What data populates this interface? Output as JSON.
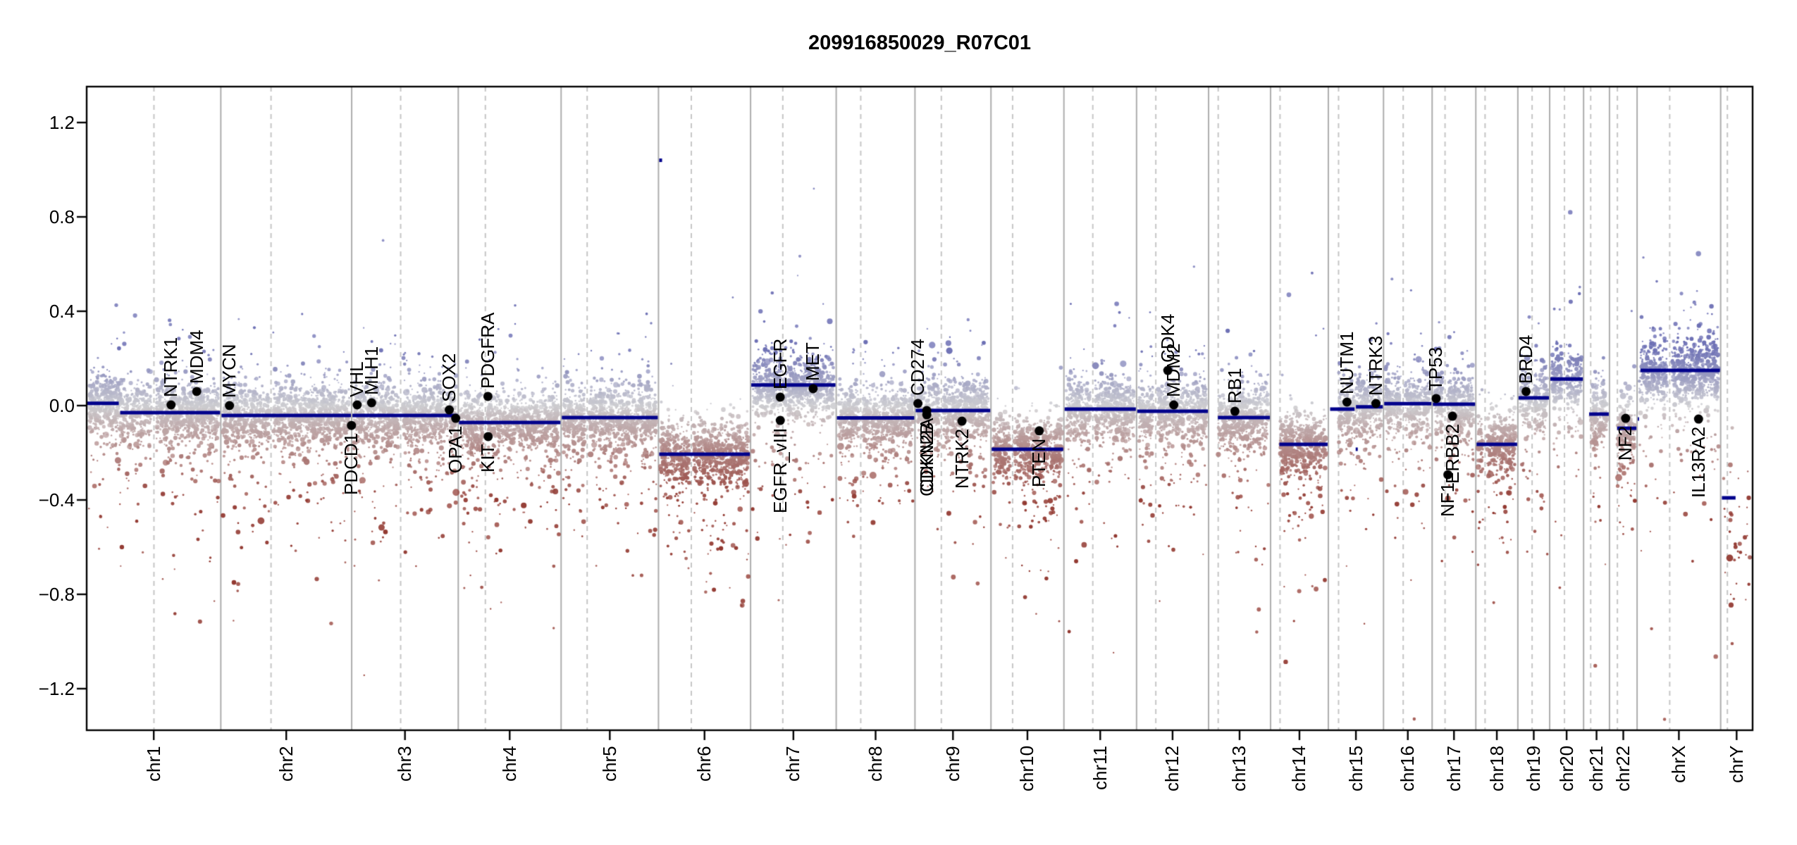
{
  "chart_data": {
    "type": "scatter",
    "subtype": "genome-wide-copy-number-profile",
    "title": "209916850029_R07C01",
    "xlabel": "",
    "ylabel": "",
    "ylim": [
      -1.376,
      1.352
    ],
    "grid": "vertical-chromosome-separators",
    "legend": "none",
    "y_ticks": [
      {
        "value": 1.2,
        "label": "1.2"
      },
      {
        "value": 0.8,
        "label": "0.8"
      },
      {
        "value": 0.4,
        "label": "0.4"
      },
      {
        "value": 0.0,
        "label": "0.0"
      },
      {
        "value": -0.4,
        "label": "−0.4"
      },
      {
        "value": -0.8,
        "label": "−0.8"
      },
      {
        "value": -1.2,
        "label": "−1.2"
      }
    ],
    "points_per_mb": 6.5,
    "point_noise_sd": 0.062,
    "chromosomes": [
      {
        "name": "chr1",
        "length_mb": 249.25,
        "centromere_mb": 125.0,
        "segments": [
          {
            "start": 0,
            "end": 61,
            "value": 0.01
          },
          {
            "start": 61,
            "end": 249.25,
            "value": -0.03
          }
        ]
      },
      {
        "name": "chr2",
        "length_mb": 243.2,
        "centromere_mb": 93.3,
        "segments": [
          {
            "start": 0,
            "end": 243.2,
            "value": -0.042
          }
        ]
      },
      {
        "name": "chr3",
        "length_mb": 198.02,
        "centromere_mb": 91.0,
        "segments": [
          {
            "start": 0,
            "end": 198.02,
            "value": -0.042
          }
        ]
      },
      {
        "name": "chr4",
        "length_mb": 191.15,
        "centromere_mb": 50.4,
        "segments": [
          {
            "start": 0,
            "end": 191.15,
            "value": -0.072
          }
        ]
      },
      {
        "name": "chr5",
        "length_mb": 180.92,
        "centromere_mb": 48.4,
        "segments": [
          {
            "start": 0,
            "end": 180.92,
            "value": -0.051
          }
        ]
      },
      {
        "name": "chr6",
        "length_mb": 171.12,
        "centromere_mb": 61.0,
        "segments": [
          {
            "start": 0,
            "end": 8,
            "value": 1.04,
            "micro": true
          },
          {
            "start": 0,
            "end": 171.12,
            "value": -0.206
          }
        ]
      },
      {
        "name": "chr7",
        "length_mb": 159.14,
        "centromere_mb": 59.9,
        "segments": [
          {
            "start": 0,
            "end": 159.14,
            "value": 0.087
          }
        ]
      },
      {
        "name": "chr8",
        "length_mb": 146.36,
        "centromere_mb": 45.6,
        "segments": [
          {
            "start": 0,
            "end": 146.36,
            "value": -0.052
          }
        ]
      },
      {
        "name": "chr9",
        "length_mb": 141.21,
        "centromere_mb": 49.0,
        "segments": [
          {
            "start": 0,
            "end": 141.21,
            "value": -0.021
          }
        ]
      },
      {
        "name": "chr10",
        "length_mb": 135.53,
        "centromere_mb": 40.2,
        "segments": [
          {
            "start": 0,
            "end": 135.53,
            "value": -0.185
          }
        ]
      },
      {
        "name": "chr11",
        "length_mb": 135.01,
        "centromere_mb": 53.7,
        "segments": [
          {
            "start": 0,
            "end": 135.01,
            "value": -0.015
          }
        ]
      },
      {
        "name": "chr12",
        "length_mb": 133.85,
        "centromere_mb": 35.8,
        "segments": [
          {
            "start": 0,
            "end": 133.85,
            "value": -0.024
          }
        ]
      },
      {
        "name": "chr13",
        "length_mb": 115.17,
        "centromere_mb": 17.9,
        "acrocentric": true,
        "segments": [
          {
            "start": 16,
            "end": 115.17,
            "value": -0.051
          }
        ]
      },
      {
        "name": "chr14",
        "length_mb": 107.35,
        "centromere_mb": 17.6,
        "acrocentric": true,
        "segments": [
          {
            "start": 15,
            "end": 107.35,
            "value": -0.164
          }
        ]
      },
      {
        "name": "chr15",
        "length_mb": 102.53,
        "centromere_mb": 19.0,
        "acrocentric": true,
        "segments": [
          {
            "start": 2,
            "end": 50,
            "value": -0.015
          },
          {
            "start": 49.5,
            "end": 56,
            "value": -0.185,
            "micro": true
          },
          {
            "start": 50,
            "end": 102.53,
            "value": -0.005
          }
        ]
      },
      {
        "name": "chr16",
        "length_mb": 90.35,
        "centromere_mb": 36.6,
        "segments": [
          {
            "start": 0,
            "end": 90.35,
            "value": 0.008
          }
        ]
      },
      {
        "name": "chr17",
        "length_mb": 81.2,
        "centromere_mb": 24.0,
        "segments": [
          {
            "start": 0,
            "end": 81.2,
            "value": 0.006
          }
        ]
      },
      {
        "name": "chr18",
        "length_mb": 78.08,
        "centromere_mb": 17.2,
        "segments": [
          {
            "start": 0,
            "end": 78.08,
            "value": -0.164
          }
        ]
      },
      {
        "name": "chr19",
        "length_mb": 59.13,
        "centromere_mb": 26.5,
        "segments": [
          {
            "start": 0,
            "end": 59.13,
            "value": 0.033
          }
        ]
      },
      {
        "name": "chr20",
        "length_mb": 63.03,
        "centromere_mb": 27.5,
        "segments": [
          {
            "start": 0,
            "end": 63.03,
            "value": 0.113
          }
        ]
      },
      {
        "name": "chr21",
        "length_mb": 48.13,
        "centromere_mb": 13.2,
        "acrocentric": true,
        "segments": [
          {
            "start": 9,
            "end": 48.13,
            "value": -0.036
          }
        ]
      },
      {
        "name": "chr22",
        "length_mb": 51.3,
        "centromere_mb": 14.7,
        "acrocentric": true,
        "segments": [
          {
            "start": 13,
            "end": 51.3,
            "value": -0.096
          }
        ]
      },
      {
        "name": "chrX",
        "length_mb": 155.27,
        "centromere_mb": 60.6,
        "segments": [
          {
            "start": 0,
            "end": 5,
            "value": -0.057,
            "micro": true
          },
          {
            "start": 5,
            "end": 155.27,
            "value": 0.149
          }
        ]
      },
      {
        "name": "chrY",
        "length_mb": 59.37,
        "centromere_mb": 12.5,
        "point_density": 0.8,
        "point_mean": -0.58,
        "point_sd": 0.17,
        "segments": [
          {
            "start": 1,
            "end": 29,
            "value": -0.391
          }
        ]
      }
    ],
    "gene_markers": [
      {
        "label": "NTRK1",
        "chr": "chr1",
        "pos_mb": 156.8,
        "value": 0.003,
        "label_side": "above"
      },
      {
        "label": "MDM4",
        "chr": "chr1",
        "pos_mb": 204.5,
        "value": 0.06,
        "label_side": "above"
      },
      {
        "label": "MYCN",
        "chr": "chr2",
        "pos_mb": 16.1,
        "value": 0.0,
        "label_side": "above"
      },
      {
        "label": "PDCD1",
        "chr": "chr2",
        "pos_mb": 242.8,
        "value": -0.084,
        "label_side": "below"
      },
      {
        "label": "VHL",
        "chr": "chr3",
        "pos_mb": 10.2,
        "value": 0.003,
        "label_side": "above"
      },
      {
        "label": "MLH1",
        "chr": "chr3",
        "pos_mb": 37.0,
        "value": 0.012,
        "label_side": "above"
      },
      {
        "label": "SOX2",
        "chr": "chr3",
        "pos_mb": 181.4,
        "value": -0.018,
        "label_side": "above"
      },
      {
        "label": "OPA1",
        "chr": "chr3",
        "pos_mb": 193.3,
        "value": -0.054,
        "label_side": "below"
      },
      {
        "label": "PDGFRA",
        "chr": "chr4",
        "pos_mb": 55.1,
        "value": 0.039,
        "label_side": "above"
      },
      {
        "label": "KIT",
        "chr": "chr4",
        "pos_mb": 55.6,
        "value": -0.131,
        "label_side": "below"
      },
      {
        "label": "EGFR",
        "chr": "chr7",
        "pos_mb": 55.1,
        "value": 0.036,
        "label_side": "above"
      },
      {
        "label": "EGFR_vIII",
        "chr": "chr7",
        "pos_mb": 55.2,
        "value": -0.063,
        "label_side": "below"
      },
      {
        "label": "MET",
        "chr": "chr7",
        "pos_mb": 116.3,
        "value": 0.072,
        "label_side": "above"
      },
      {
        "label": "CD274",
        "chr": "chr9",
        "pos_mb": 5.5,
        "value": 0.009,
        "label_side": "above"
      },
      {
        "label": "CDKN2A",
        "chr": "chr9",
        "pos_mb": 21.9,
        "value": -0.021,
        "label_side": "below"
      },
      {
        "label": "CDKN2B",
        "chr": "chr9",
        "pos_mb": 22.0,
        "value": -0.039,
        "label_side": "below"
      },
      {
        "label": "NTRK2",
        "chr": "chr9",
        "pos_mb": 87.3,
        "value": -0.066,
        "label_side": "below"
      },
      {
        "label": "PTEN",
        "chr": "chr10",
        "pos_mb": 89.7,
        "value": -0.107,
        "label_side": "below"
      },
      {
        "label": "CDK4",
        "chr": "chr12",
        "pos_mb": 58.1,
        "value": 0.149,
        "label_side": "above"
      },
      {
        "label": "MDM2",
        "chr": "chr12",
        "pos_mb": 69.2,
        "value": 0.003,
        "label_side": "above"
      },
      {
        "label": "RB1",
        "chr": "chr13",
        "pos_mb": 48.9,
        "value": -0.024,
        "label_side": "above"
      },
      {
        "label": "NUTM1",
        "chr": "chr15",
        "pos_mb": 34.6,
        "value": 0.015,
        "label_side": "above"
      },
      {
        "label": "NTRK3",
        "chr": "chr15",
        "pos_mb": 88.4,
        "value": 0.009,
        "label_side": "above"
      },
      {
        "label": "TP53",
        "chr": "chr17",
        "pos_mb": 7.5,
        "value": 0.03,
        "label_side": "above"
      },
      {
        "label": "NF1",
        "chr": "chr17",
        "pos_mb": 29.4,
        "value": -0.293,
        "label_side": "below"
      },
      {
        "label": "ERBB2",
        "chr": "chr17",
        "pos_mb": 37.8,
        "value": -0.045,
        "label_side": "below"
      },
      {
        "label": "BRD4",
        "chr": "chr19",
        "pos_mb": 15.3,
        "value": 0.06,
        "label_side": "above"
      },
      {
        "label": "NF2",
        "chr": "chr22",
        "pos_mb": 30.0,
        "value": -0.054,
        "label_side": "below"
      },
      {
        "label": "IL13RA2",
        "chr": "chrX",
        "pos_mb": 114.2,
        "value": -0.057,
        "label_side": "below"
      }
    ],
    "colors": {
      "background": "#FFFFFF",
      "axis_and_box": "#000000",
      "segment_line": "#00008B",
      "gene_marker": "#000000",
      "chromosome_boundary_line": "#ADADAD",
      "centromere_line": "#C6C6C6",
      "point_gain": "#6C6FB4",
      "point_neutral": "#CCCCD0",
      "point_loss": "#923830"
    }
  }
}
